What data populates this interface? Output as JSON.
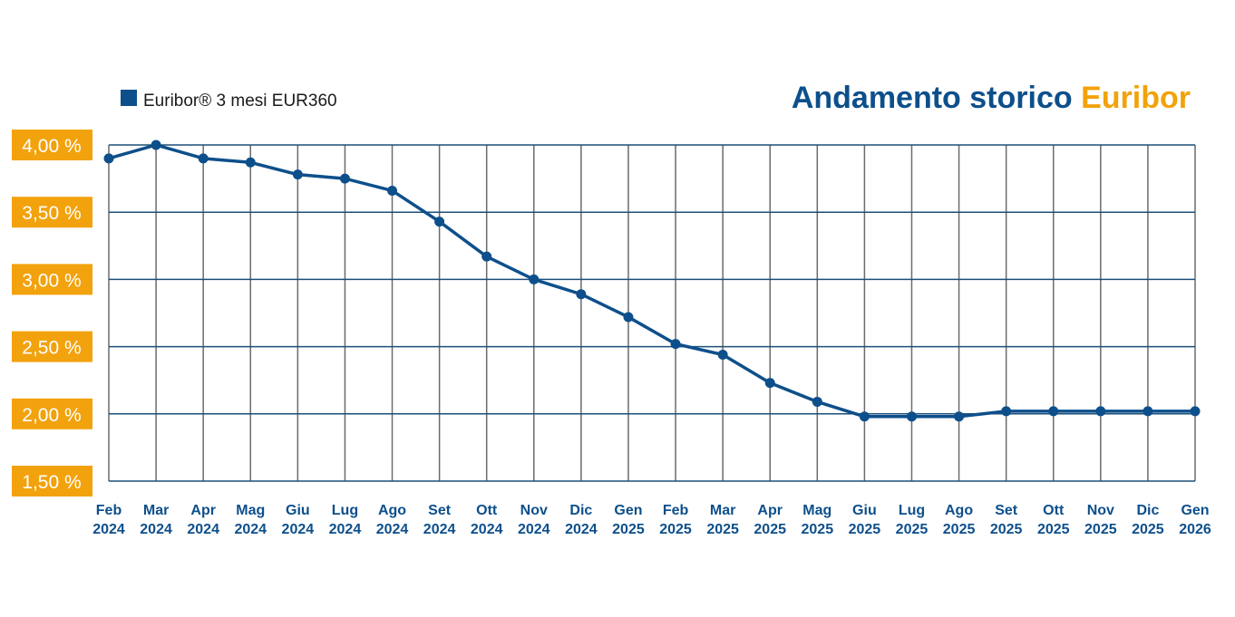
{
  "title": {
    "part1": "Andamento storico",
    "part2": "Euribor"
  },
  "colors": {
    "series": "#0d4f8b",
    "accent": "#f2a20c",
    "grid": "#6b6b6b",
    "hgrid": "#1c4f7a"
  },
  "chart_data": {
    "type": "line",
    "title": "Andamento storico Euribor",
    "xlabel": "",
    "ylabel": "",
    "ylim": [
      1.5,
      4.0
    ],
    "grid": true,
    "legend_position": "top-left",
    "y_ticks": [
      {
        "value": 4.0,
        "label": "4,00 %"
      },
      {
        "value": 3.5,
        "label": "3,50 %"
      },
      {
        "value": 3.0,
        "label": "3,00 %"
      },
      {
        "value": 2.5,
        "label": "2,50 %"
      },
      {
        "value": 2.0,
        "label": "2,00 %"
      },
      {
        "value": 1.5,
        "label": "1,50 %"
      }
    ],
    "categories": [
      {
        "month": "Feb",
        "year": "2024"
      },
      {
        "month": "Mar",
        "year": "2024"
      },
      {
        "month": "Apr",
        "year": "2024"
      },
      {
        "month": "Mag",
        "year": "2024"
      },
      {
        "month": "Giu",
        "year": "2024"
      },
      {
        "month": "Lug",
        "year": "2024"
      },
      {
        "month": "Ago",
        "year": "2024"
      },
      {
        "month": "Set",
        "year": "2024"
      },
      {
        "month": "Ott",
        "year": "2024"
      },
      {
        "month": "Nov",
        "year": "2024"
      },
      {
        "month": "Dic",
        "year": "2024"
      },
      {
        "month": "Gen",
        "year": "2025"
      },
      {
        "month": "Feb",
        "year": "2025"
      },
      {
        "month": "Mar",
        "year": "2025"
      },
      {
        "month": "Apr",
        "year": "2025"
      },
      {
        "month": "Mag",
        "year": "2025"
      },
      {
        "month": "Giu",
        "year": "2025"
      },
      {
        "month": "Lug",
        "year": "2025"
      },
      {
        "month": "Ago",
        "year": "2025"
      },
      {
        "month": "Set",
        "year": "2025"
      },
      {
        "month": "Ott",
        "year": "2025"
      },
      {
        "month": "Nov",
        "year": "2025"
      },
      {
        "month": "Dic",
        "year": "2025"
      },
      {
        "month": "Gen",
        "year": "2026"
      }
    ],
    "series": [
      {
        "name": "Euribor® 3 mesi EUR360",
        "values": [
          3.9,
          4.0,
          3.9,
          3.87,
          3.78,
          3.75,
          3.66,
          3.43,
          3.17,
          3.0,
          2.89,
          2.72,
          2.52,
          2.44,
          2.23,
          2.09,
          1.98,
          1.98,
          1.98,
          2.02,
          2.02,
          2.02,
          2.02,
          2.02
        ]
      }
    ]
  }
}
